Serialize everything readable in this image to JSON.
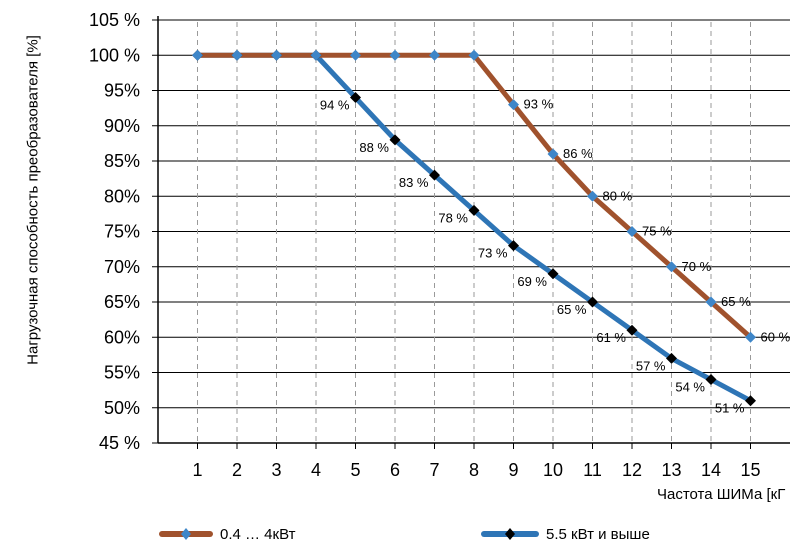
{
  "chart_data": {
    "type": "line",
    "title": "",
    "xlabel": "Частота ШИМа [кГ",
    "ylabel": "Нагрузочная способность преобразователя [%]",
    "x": [
      1,
      2,
      3,
      4,
      5,
      6,
      7,
      8,
      9,
      10,
      11,
      12,
      13,
      14,
      15
    ],
    "x_ticks": [
      "1",
      "2",
      "3",
      "4",
      "5",
      "6",
      "7",
      "8",
      "9",
      "10",
      "11",
      "12",
      "13",
      "14",
      "15"
    ],
    "y_ticks": [
      "45 %",
      "50%",
      "55%",
      "60%",
      "65%",
      "70%",
      "75%",
      "80%",
      "85%",
      "90%",
      "95%",
      "100 %",
      "105 %"
    ],
    "ylim": [
      45,
      105
    ],
    "xlim": [
      0,
      16
    ],
    "grid": "horizontal solid, vertical dashed",
    "legend_position": "bottom",
    "series": [
      {
        "name": "0.4 … 4кВт",
        "color": "#A0522D",
        "marker_color": "#3E86C8",
        "marker": "diamond",
        "values": [
          100,
          100,
          100,
          100,
          100,
          100,
          100,
          100,
          93,
          86,
          80,
          75,
          70,
          65,
          60
        ],
        "data_labels": [
          "",
          "",
          "",
          "",
          "",
          "",
          "",
          "",
          "93 %",
          "86 %",
          "80 %",
          "75 %",
          "70 %",
          "65 %",
          "60 %"
        ]
      },
      {
        "name": "5.5 кВт и выше",
        "color": "#2E75B6",
        "marker_color": "#000000",
        "marker": "diamond",
        "values": [
          100,
          100,
          100,
          100,
          94,
          88,
          83,
          78,
          73,
          69,
          65,
          61,
          57,
          54,
          51
        ],
        "data_labels": [
          "",
          "",
          "",
          "",
          "94 %",
          "88 %",
          "83 %",
          "78 %",
          "73 %",
          "69 %",
          "65 %",
          "61 %",
          "57 %",
          "54 %",
          "51 %"
        ]
      }
    ]
  }
}
